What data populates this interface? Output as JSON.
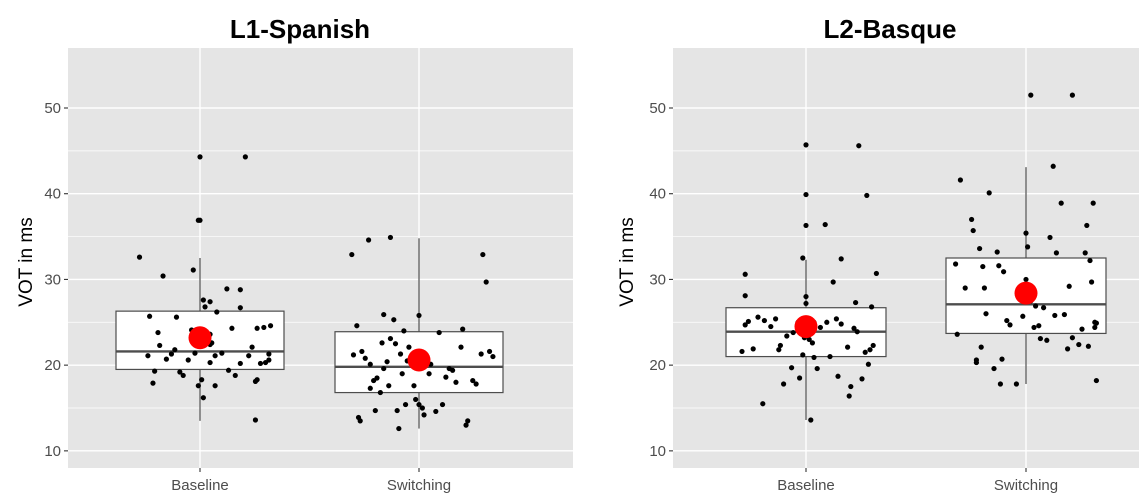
{
  "chart_data": [
    {
      "type": "box",
      "title": "L1-Spanish",
      "ylabel": "VOT in ms",
      "xlabel": "",
      "ylim": [
        8,
        57
      ],
      "yticks": [
        10,
        20,
        30,
        40,
        50
      ],
      "grid": true,
      "categories": [
        "Baseline",
        "Switching"
      ],
      "boxes": [
        {
          "category": "Baseline",
          "q1": 19.5,
          "median": 21.6,
          "q3": 26.3,
          "whisker_low": 13.5,
          "whisker_high": 32.5,
          "mean": 23.2,
          "points": [
            [
              -0.36,
              32.6
            ],
            [
              -0.3,
              25.7
            ],
            [
              -0.22,
              30.4
            ],
            [
              -0.31,
              21.1
            ],
            [
              -0.28,
              17.9
            ],
            [
              -0.27,
              19.3
            ],
            [
              -0.25,
              23.8
            ],
            [
              -0.24,
              22.3
            ],
            [
              -0.2,
              20.7
            ],
            [
              -0.17,
              21.3
            ],
            [
              -0.15,
              21.8
            ],
            [
              -0.14,
              25.6
            ],
            [
              -0.12,
              19.2
            ],
            [
              -0.1,
              18.8
            ],
            [
              -0.07,
              20.6
            ],
            [
              -0.05,
              24.1
            ],
            [
              -0.03,
              21.4
            ],
            [
              -0.04,
              31.1
            ],
            [
              -0.01,
              17.6
            ],
            [
              0.01,
              18.3
            ],
            [
              -0.01,
              36.9
            ],
            [
              0.0,
              44.3
            ],
            [
              0.0,
              36.9
            ],
            [
              0.02,
              16.2
            ],
            [
              0.02,
              27.6
            ],
            [
              0.03,
              26.8
            ],
            [
              0.04,
              22.8
            ],
            [
              0.05,
              23.2
            ],
            [
              0.06,
              22.4
            ],
            [
              0.06,
              20.3
            ],
            [
              0.06,
              27.4
            ],
            [
              0.06,
              23.6
            ],
            [
              0.07,
              22.6
            ],
            [
              0.09,
              17.6
            ],
            [
              0.09,
              21.1
            ],
            [
              0.1,
              26.2
            ],
            [
              0.13,
              21.4
            ],
            [
              0.16,
              28.9
            ],
            [
              0.17,
              19.4
            ],
            [
              0.19,
              24.3
            ],
            [
              0.21,
              18.8
            ],
            [
              0.24,
              26.7
            ],
            [
              0.24,
              28.8
            ],
            [
              0.24,
              20.2
            ],
            [
              0.29,
              21.1
            ],
            [
              0.27,
              44.3
            ],
            [
              0.31,
              22.1
            ],
            [
              0.33,
              18.1
            ],
            [
              0.34,
              18.3
            ],
            [
              0.33,
              13.6
            ],
            [
              0.34,
              24.3
            ],
            [
              0.36,
              20.2
            ],
            [
              0.38,
              24.4
            ],
            [
              0.39,
              20.3
            ],
            [
              0.41,
              20.6
            ],
            [
              0.41,
              21.3
            ],
            [
              0.42,
              24.6
            ]
          ]
        },
        {
          "category": "Switching",
          "q1": 16.8,
          "median": 19.8,
          "q3": 23.9,
          "whisker_low": 12.6,
          "whisker_high": 34.8,
          "mean": 20.6,
          "points": [
            [
              -0.4,
              32.9
            ],
            [
              -0.39,
              21.2
            ],
            [
              -0.37,
              24.6
            ],
            [
              -0.36,
              13.9
            ],
            [
              -0.34,
              21.6
            ],
            [
              -0.35,
              13.5
            ],
            [
              -0.32,
              20.8
            ],
            [
              -0.3,
              34.6
            ],
            [
              -0.29,
              20.1
            ],
            [
              -0.29,
              17.3
            ],
            [
              -0.27,
              18.2
            ],
            [
              -0.25,
              18.5
            ],
            [
              -0.26,
              14.7
            ],
            [
              -0.23,
              16.8
            ],
            [
              -0.22,
              22.6
            ],
            [
              -0.21,
              25.9
            ],
            [
              -0.21,
              19.6
            ],
            [
              -0.19,
              20.4
            ],
            [
              -0.18,
              17.6
            ],
            [
              -0.17,
              23.1
            ],
            [
              -0.17,
              34.9
            ],
            [
              -0.15,
              25.3
            ],
            [
              -0.14,
              22.5
            ],
            [
              -0.13,
              14.7
            ],
            [
              -0.12,
              12.6
            ],
            [
              -0.11,
              21.3
            ],
            [
              -0.1,
              19.0
            ],
            [
              -0.09,
              24.0
            ],
            [
              -0.08,
              15.4
            ],
            [
              -0.07,
              20.5
            ],
            [
              -0.06,
              22.1
            ],
            [
              -0.03,
              17.6
            ],
            [
              -0.02,
              16.0
            ],
            [
              0.0,
              15.4
            ],
            [
              0.0,
              25.8
            ],
            [
              0.02,
              15.0
            ],
            [
              0.03,
              14.2
            ],
            [
              0.04,
              20.2
            ],
            [
              0.06,
              19.0
            ],
            [
              0.07,
              20.1
            ],
            [
              0.1,
              14.6
            ],
            [
              0.12,
              23.8
            ],
            [
              0.14,
              15.4
            ],
            [
              0.16,
              18.6
            ],
            [
              0.18,
              19.6
            ],
            [
              0.2,
              19.4
            ],
            [
              0.22,
              18.0
            ],
            [
              0.25,
              22.1
            ],
            [
              0.26,
              24.2
            ],
            [
              0.28,
              13.0
            ],
            [
              0.29,
              13.5
            ],
            [
              0.32,
              18.2
            ],
            [
              0.34,
              17.8
            ],
            [
              0.37,
              21.3
            ],
            [
              0.38,
              32.9
            ],
            [
              0.4,
              29.7
            ],
            [
              0.42,
              21.6
            ],
            [
              0.44,
              21.0
            ]
          ]
        }
      ]
    },
    {
      "type": "box",
      "title": "L2-Basque",
      "ylabel": "VOT in ms",
      "xlabel": "",
      "ylim": [
        8,
        57
      ],
      "yticks": [
        10,
        20,
        30,
        40,
        50
      ],
      "grid": true,
      "categories": [
        "Baseline",
        "Switching"
      ],
      "boxes": [
        {
          "category": "Baseline",
          "q1": 21.0,
          "median": 23.9,
          "q3": 26.7,
          "whisker_low": 13.6,
          "whisker_high": 32.3,
          "mean": 24.5,
          "points": [
            [
              -0.38,
              30.6
            ],
            [
              -0.38,
              28.1
            ],
            [
              -0.38,
              24.7
            ],
            [
              -0.4,
              21.6
            ],
            [
              -0.36,
              25.1
            ],
            [
              -0.33,
              21.9
            ],
            [
              -0.3,
              25.6
            ],
            [
              -0.27,
              15.5
            ],
            [
              -0.26,
              25.2
            ],
            [
              -0.22,
              24.5
            ],
            [
              -0.19,
              25.4
            ],
            [
              -0.17,
              21.8
            ],
            [
              -0.16,
              22.3
            ],
            [
              -0.14,
              17.8
            ],
            [
              -0.12,
              23.4
            ],
            [
              -0.09,
              19.7
            ],
            [
              -0.08,
              23.8
            ],
            [
              -0.05,
              25.0
            ],
            [
              -0.04,
              18.5
            ],
            [
              -0.02,
              32.5
            ],
            [
              -0.02,
              24.6
            ],
            [
              -0.01,
              23.2
            ],
            [
              -0.02,
              21.2
            ],
            [
              0.0,
              27.2
            ],
            [
              0.0,
              28.0
            ],
            [
              0.0,
              45.7
            ],
            [
              0.0,
              39.9
            ],
            [
              0.0,
              36.3
            ],
            [
              0.02,
              23.0
            ],
            [
              0.03,
              13.6
            ],
            [
              0.04,
              22.6
            ],
            [
              0.05,
              20.9
            ],
            [
              0.05,
              25.0
            ],
            [
              0.07,
              19.6
            ],
            [
              0.09,
              24.4
            ],
            [
              0.12,
              36.4
            ],
            [
              0.13,
              25.0
            ],
            [
              0.15,
              21.0
            ],
            [
              0.17,
              29.7
            ],
            [
              0.19,
              25.4
            ],
            [
              0.2,
              18.7
            ],
            [
              0.22,
              24.8
            ],
            [
              0.22,
              32.4
            ],
            [
              0.26,
              22.1
            ],
            [
              0.27,
              16.4
            ],
            [
              0.28,
              17.5
            ],
            [
              0.3,
              24.3
            ],
            [
              0.31,
              27.3
            ],
            [
              0.32,
              23.9
            ],
            [
              0.33,
              45.6
            ],
            [
              0.35,
              18.4
            ],
            [
              0.37,
              21.5
            ],
            [
              0.38,
              39.8
            ],
            [
              0.39,
              20.1
            ],
            [
              0.4,
              21.8
            ],
            [
              0.41,
              26.8
            ],
            [
              0.44,
              30.7
            ],
            [
              0.42,
              22.3
            ]
          ]
        },
        {
          "category": "Switching",
          "q1": 23.7,
          "median": 27.1,
          "q3": 32.5,
          "whisker_low": 17.8,
          "whisker_high": 43.1,
          "mean": 28.4,
          "points": [
            [
              -0.44,
              31.8
            ],
            [
              -0.43,
              23.6
            ],
            [
              -0.41,
              41.6
            ],
            [
              -0.38,
              29.0
            ],
            [
              -0.34,
              37.0
            ],
            [
              -0.33,
              35.7
            ],
            [
              -0.31,
              20.6
            ],
            [
              -0.31,
              20.3
            ],
            [
              -0.29,
              33.6
            ],
            [
              -0.28,
              22.1
            ],
            [
              -0.27,
              31.5
            ],
            [
              -0.26,
              29.0
            ],
            [
              -0.25,
              26.0
            ],
            [
              -0.23,
              40.1
            ],
            [
              -0.2,
              19.6
            ],
            [
              -0.18,
              33.2
            ],
            [
              -0.17,
              31.6
            ],
            [
              -0.16,
              17.8
            ],
            [
              -0.15,
              20.7
            ],
            [
              -0.14,
              30.9
            ],
            [
              -0.12,
              25.2
            ],
            [
              -0.1,
              24.7
            ],
            [
              -0.06,
              17.8
            ],
            [
              -0.04,
              28.0
            ],
            [
              -0.02,
              25.7
            ],
            [
              0.0,
              35.4
            ],
            [
              0.0,
              30.0
            ],
            [
              0.01,
              33.8
            ],
            [
              0.03,
              51.5
            ],
            [
              0.03,
              27.5
            ],
            [
              0.05,
              24.4
            ],
            [
              0.06,
              26.9
            ],
            [
              0.08,
              24.6
            ],
            [
              0.09,
              23.1
            ],
            [
              0.11,
              26.7
            ],
            [
              0.13,
              22.9
            ],
            [
              0.15,
              34.9
            ],
            [
              0.17,
              43.2
            ],
            [
              0.18,
              25.8
            ],
            [
              0.19,
              33.1
            ],
            [
              0.22,
              38.9
            ],
            [
              0.24,
              25.9
            ],
            [
              0.26,
              21.9
            ],
            [
              0.27,
              29.2
            ],
            [
              0.29,
              23.2
            ],
            [
              0.29,
              51.5
            ],
            [
              0.33,
              22.4
            ],
            [
              0.35,
              24.2
            ],
            [
              0.37,
              33.1
            ],
            [
              0.38,
              36.3
            ],
            [
              0.39,
              22.2
            ],
            [
              0.4,
              32.2
            ],
            [
              0.41,
              29.7
            ],
            [
              0.42,
              38.9
            ],
            [
              0.43,
              24.4
            ],
            [
              0.43,
              25.0
            ],
            [
              0.44,
              18.2
            ],
            [
              0.44,
              24.9
            ]
          ]
        }
      ]
    }
  ],
  "style": {
    "panel_bg": "#e5e5e5",
    "grid_color": "#ffffff",
    "box_fill": "#ffffff",
    "box_stroke": "#4d4d4d",
    "point_color": "#000000",
    "mean_color": "#ff0000"
  }
}
